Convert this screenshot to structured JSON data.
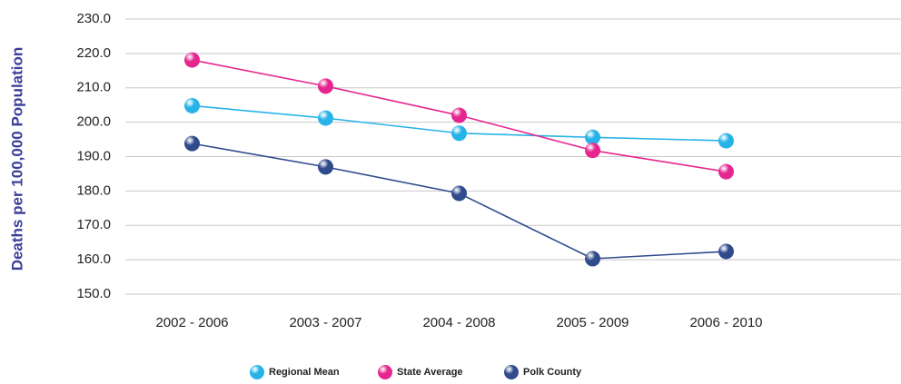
{
  "chart_data": {
    "type": "line",
    "y_label": "Deaths per 100,000 Population",
    "categories": [
      "2002 - 2006",
      "2003 - 2007",
      "2004 - 2008",
      "2005 - 2009",
      "2006 - 2010"
    ],
    "series": [
      {
        "name": "Regional Mean",
        "color": "#27b3e8",
        "values": [
          204.8,
          201.2,
          196.8,
          195.6,
          194.6
        ]
      },
      {
        "name": "State Average",
        "color": "#e6268f",
        "values": [
          218.1,
          210.5,
          202.0,
          191.8,
          185.6
        ]
      },
      {
        "name": "Polk County",
        "color": "#2f4b8c",
        "values": [
          193.8,
          187.0,
          179.3,
          160.3,
          162.4
        ]
      }
    ],
    "ylim": [
      150,
      230
    ],
    "yticks": [
      {
        "value": 150,
        "label": "150.0"
      },
      {
        "value": 160,
        "label": "160.0"
      },
      {
        "value": 170,
        "label": "170.0"
      },
      {
        "value": 180,
        "label": "180.0"
      },
      {
        "value": 190,
        "label": "190.0"
      },
      {
        "value": 200,
        "label": "200.0"
      },
      {
        "value": 210,
        "label": "210.0"
      },
      {
        "value": 220,
        "label": "220.0"
      },
      {
        "value": 230,
        "label": "230.0"
      }
    ],
    "grid": true,
    "legend": "bottom"
  }
}
